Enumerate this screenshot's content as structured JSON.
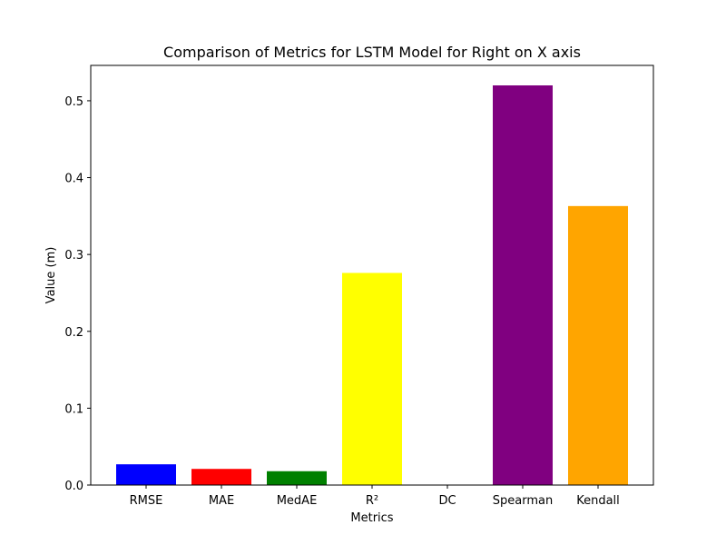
{
  "chart_data": {
    "type": "bar",
    "title": "Comparison of Metrics for LSTM Model for Right on X axis",
    "xlabel": "Metrics",
    "ylabel": "Value (m)",
    "categories": [
      "RMSE",
      "MAE",
      "MedAE",
      "R²",
      "DC",
      "Spearman",
      "Kendall"
    ],
    "values": [
      0.027,
      0.021,
      0.018,
      0.276,
      0.0,
      0.52,
      0.363
    ],
    "colors": [
      "#0000ff",
      "#ff0000",
      "#008000",
      "#ffff00",
      "#00ffff",
      "#800080",
      "#ffa500"
    ],
    "ylim": [
      0,
      0.546
    ],
    "yticks": [
      "0.0",
      "0.1",
      "0.2",
      "0.3",
      "0.4",
      "0.5"
    ],
    "grid": false,
    "legend": "none"
  }
}
